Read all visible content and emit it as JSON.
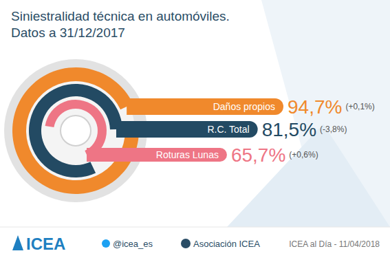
{
  "chart_data": {
    "type": "radial_bar",
    "title": [
      "Siniestralidad técnica en automóviles.",
      "Datos a 31/12/2017"
    ],
    "categories": [
      "Daños propios",
      "R.C. Total",
      "Roturas Lunas"
    ],
    "values": [
      94.7,
      81.5,
      65.7
    ],
    "value_labels": [
      "94,7%",
      "81,5%",
      "65,7%"
    ],
    "changes": [
      0.1,
      -3.8,
      0.6
    ],
    "change_labels": [
      "(+0,1%)",
      "(-3,8%)",
      "(+0,6%)"
    ],
    "colors": [
      "#f0892c",
      "#234a63",
      "#ee7585"
    ],
    "ylim": [
      0,
      100
    ],
    "data_labels": true,
    "footer": [
      "ICEA",
      "@icea_es",
      "Asociación ICEA",
      "ICEA al Día - 11/04/2018"
    ]
  }
}
